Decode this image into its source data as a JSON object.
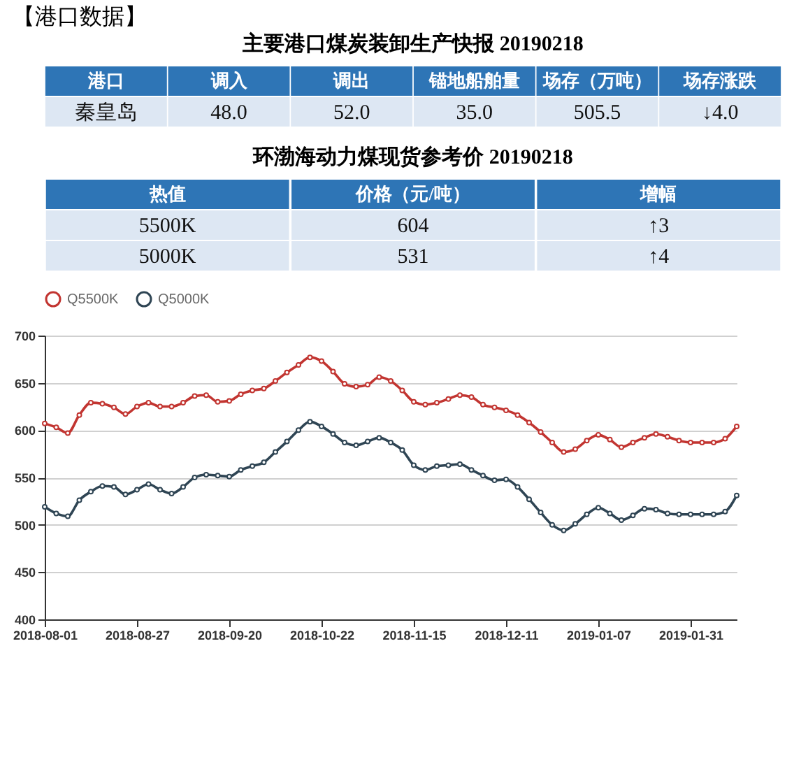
{
  "chart_data": [
    {
      "type": "other",
      "annotations": [
        "【港口数据】"
      ],
      "title": "主要港口煤炭装卸生产快报 20190218",
      "categories": [
        "港口",
        "调入",
        "调出",
        "锚地船舶量",
        "场存（万吨）",
        "场存涨跌"
      ],
      "cell_labels": [
        [
          "秦皇岛",
          "48.0",
          "52.0",
          "35.0",
          "505.5",
          "↓4.0"
        ]
      ]
    },
    {
      "type": "other",
      "title": "环渤海动力煤现货参考价 20190218",
      "categories": [
        "热值",
        "价格（元/吨）",
        "增幅"
      ],
      "cell_labels": [
        [
          "5500K",
          "604",
          "↑3"
        ],
        [
          "5000K",
          "531",
          "↑4"
        ]
      ]
    },
    {
      "type": "line",
      "legend": "top left",
      "grid": "y",
      "marker": "circle",
      "ylim": [
        400,
        700
      ],
      "yticks": [
        400,
        450,
        500,
        550,
        600,
        650,
        700
      ],
      "categories": [
        "2018-08-01",
        null,
        null,
        null,
        null,
        null,
        null,
        null,
        "2018-08-27",
        null,
        null,
        null,
        null,
        null,
        null,
        null,
        "2018-09-20",
        null,
        null,
        null,
        null,
        null,
        null,
        null,
        "2018-10-22",
        null,
        null,
        null,
        null,
        null,
        null,
        null,
        "2018-11-15",
        null,
        null,
        null,
        null,
        null,
        null,
        null,
        "2018-12-11",
        null,
        null,
        null,
        null,
        null,
        null,
        null,
        "2019-01-07",
        null,
        null,
        null,
        null,
        null,
        null,
        null,
        "2019-01-31",
        null,
        null,
        null,
        null
      ],
      "series": [
        {
          "name": "Q5500K",
          "color": "#c23531",
          "values": [
            607,
            603,
            597,
            616,
            629,
            628,
            624,
            617,
            625,
            629,
            625,
            625,
            629,
            636,
            637,
            630,
            631,
            638,
            642,
            644,
            652,
            661,
            669,
            677,
            673,
            662,
            649,
            646,
            648,
            656,
            652,
            642,
            630,
            627,
            629,
            633,
            637,
            635,
            627,
            624,
            621,
            616,
            608,
            598,
            587,
            577,
            580,
            589,
            595,
            590,
            582,
            587,
            592,
            596,
            593,
            589,
            587,
            587,
            587,
            591,
            604
          ]
        },
        {
          "name": "Q5000K",
          "color": "#2f4554",
          "values": [
            519,
            512,
            509,
            526,
            535,
            541,
            540,
            532,
            537,
            543,
            537,
            533,
            540,
            550,
            553,
            552,
            551,
            558,
            562,
            566,
            577,
            588,
            600,
            609,
            604,
            596,
            587,
            584,
            588,
            592,
            587,
            579,
            563,
            558,
            562,
            563,
            564,
            558,
            552,
            547,
            548,
            540,
            527,
            513,
            500,
            494,
            501,
            511,
            518,
            512,
            505,
            510,
            517,
            516,
            512,
            511,
            511,
            511,
            511,
            514,
            531
          ]
        }
      ]
    }
  ]
}
